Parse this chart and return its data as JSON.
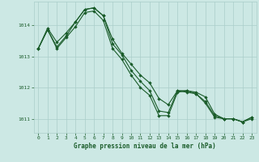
{
  "title": "Graphe pression niveau de la mer (hPa)",
  "bg_color": "#cce8e4",
  "grid_color": "#aaceca",
  "line_color": "#1a5c2a",
  "xlim": [
    -0.5,
    23.5
  ],
  "ylim": [
    1010.55,
    1014.75
  ],
  "yticks": [
    1011,
    1012,
    1013,
    1014
  ],
  "xticks": [
    0,
    1,
    2,
    3,
    4,
    5,
    6,
    7,
    8,
    9,
    10,
    11,
    12,
    13,
    14,
    15,
    16,
    17,
    18,
    19,
    20,
    21,
    22,
    23
  ],
  "series1": [
    1013.25,
    1013.9,
    1013.45,
    1013.75,
    1014.1,
    1014.5,
    1014.55,
    1014.3,
    1013.55,
    1013.1,
    1012.75,
    1012.4,
    1012.15,
    1011.65,
    1011.45,
    1011.9,
    1011.9,
    1011.85,
    1011.7,
    1011.15,
    1011.0,
    1011.0,
    1010.9,
    1011.0
  ],
  "series2": [
    1013.25,
    1013.85,
    1013.3,
    1013.65,
    1014.1,
    1014.5,
    1014.55,
    1014.3,
    1013.4,
    1013.05,
    1012.55,
    1012.2,
    1011.9,
    1011.25,
    1011.2,
    1011.9,
    1011.85,
    1011.8,
    1011.55,
    1011.1,
    1011.0,
    1011.0,
    1010.9,
    1011.05
  ],
  "series3": [
    1013.25,
    1013.85,
    1013.25,
    1013.6,
    1013.95,
    1014.4,
    1014.45,
    1014.15,
    1013.25,
    1012.9,
    1012.4,
    1012.0,
    1011.75,
    1011.1,
    1011.1,
    1011.85,
    1011.9,
    1011.8,
    1011.5,
    1011.05,
    1011.0,
    1011.0,
    1010.9,
    1011.05
  ]
}
